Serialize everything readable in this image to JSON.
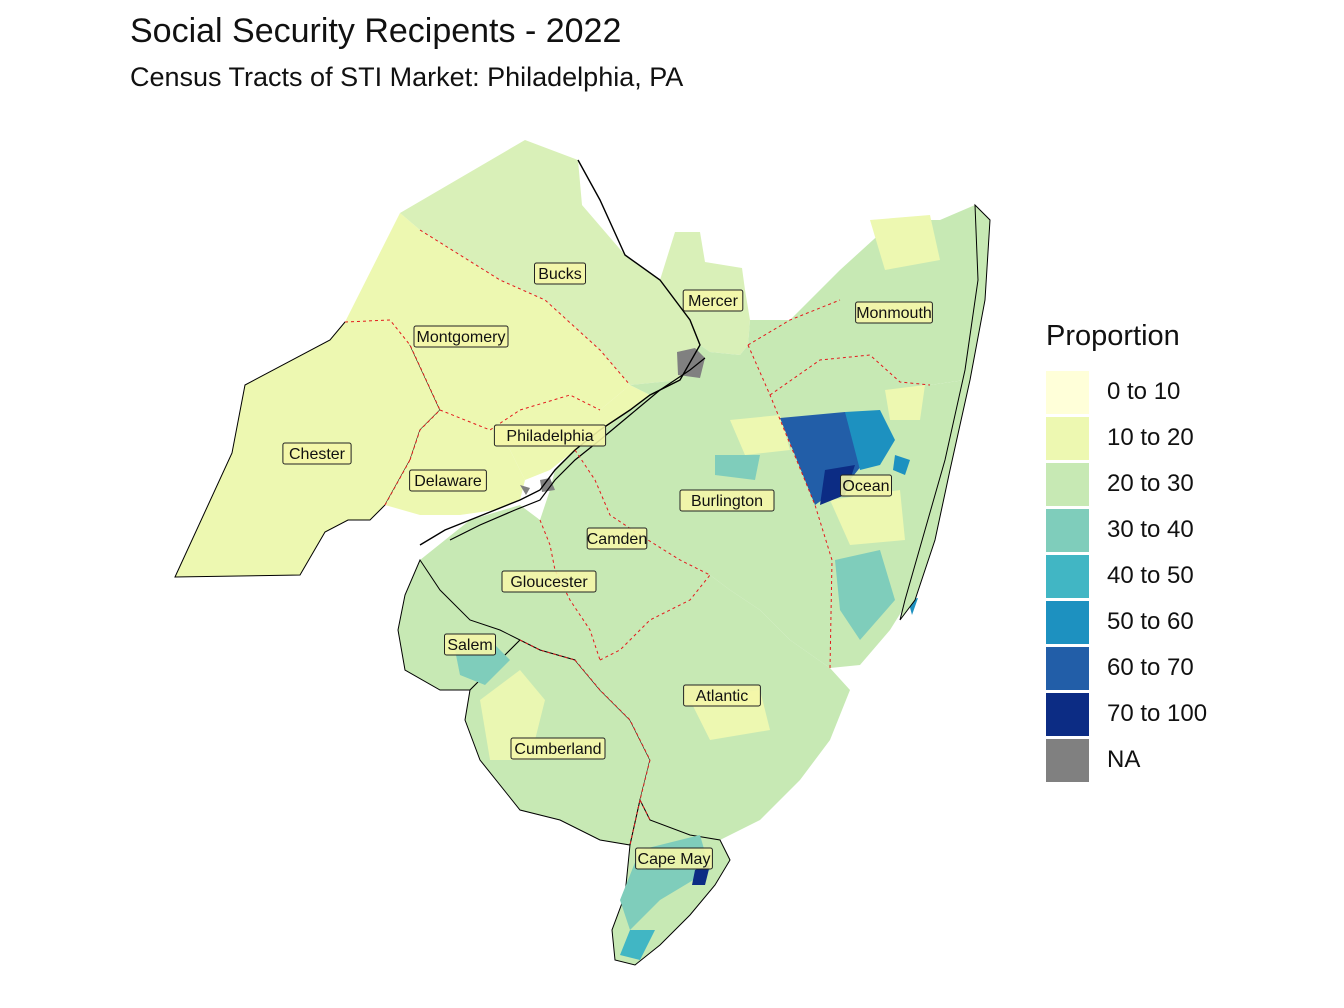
{
  "title": "Social Security Recipents - 2022",
  "subtitle": "Census Tracts of STI Market: Philadelphia, PA",
  "legend": {
    "title": "Proportion",
    "items": [
      {
        "label": "0 to 10",
        "color": "#ffffd9"
      },
      {
        "label": "10 to 20",
        "color": "#edf8b1"
      },
      {
        "label": "20 to 30",
        "color": "#c7e9b4"
      },
      {
        "label": "30 to 40",
        "color": "#7fcdbb"
      },
      {
        "label": "40 to 50",
        "color": "#41b6c4"
      },
      {
        "label": "50 to 60",
        "color": "#1d91c0"
      },
      {
        "label": "60 to 70",
        "color": "#225ea8"
      },
      {
        "label": "70 to 100",
        "color": "#0c2c84"
      },
      {
        "label": "NA",
        "color": "#808080"
      }
    ]
  },
  "counties": [
    {
      "name": "Bucks",
      "value_class": "10 to 20"
    },
    {
      "name": "Mercer",
      "value_class": "20 to 30"
    },
    {
      "name": "Monmouth",
      "value_class": "20 to 30"
    },
    {
      "name": "Montgomery",
      "value_class": "10 to 20"
    },
    {
      "name": "Philadelphia",
      "value_class": "10 to 20"
    },
    {
      "name": "Chester",
      "value_class": "10 to 20"
    },
    {
      "name": "Delaware",
      "value_class": "10 to 20"
    },
    {
      "name": "Ocean",
      "value_class": "30 to 40"
    },
    {
      "name": "Burlington",
      "value_class": "20 to 30"
    },
    {
      "name": "Camden",
      "value_class": "20 to 30"
    },
    {
      "name": "Gloucester",
      "value_class": "20 to 30"
    },
    {
      "name": "Salem",
      "value_class": "20 to 30"
    },
    {
      "name": "Atlantic",
      "value_class": "20 to 30"
    },
    {
      "name": "Cumberland",
      "value_class": "20 to 30"
    },
    {
      "name": "Cape May",
      "value_class": "30 to 40"
    }
  ]
}
